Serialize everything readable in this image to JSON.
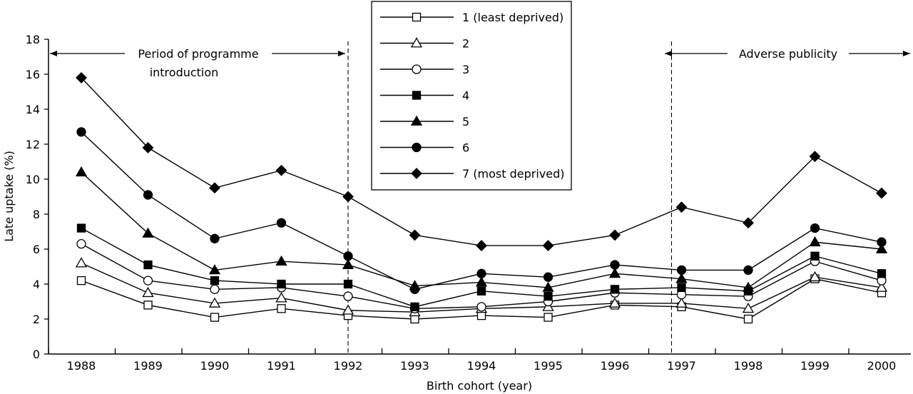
{
  "chart_data": {
    "type": "line",
    "title": "",
    "xlabel": "Birth cohort (year)",
    "ylabel": "Late uptake (%)",
    "ylim": [
      0,
      18
    ],
    "yticks": [
      0,
      2,
      4,
      6,
      8,
      10,
      12,
      14,
      16,
      18
    ],
    "categories": [
      "1988",
      "1989",
      "1990",
      "1991",
      "1992",
      "1993",
      "1994",
      "1995",
      "1996",
      "1997",
      "1998",
      "1999",
      "2000"
    ],
    "grid": false,
    "legend_position": "top-center",
    "series": [
      {
        "name": "1 (least deprived)",
        "marker": "square-open",
        "values": [
          4.2,
          2.8,
          2.1,
          2.6,
          2.2,
          2.0,
          2.2,
          2.1,
          2.8,
          2.7,
          2.0,
          4.3,
          3.5
        ]
      },
      {
        "name": "2",
        "marker": "triangle-open",
        "values": [
          5.2,
          3.5,
          2.9,
          3.2,
          2.5,
          2.4,
          2.6,
          2.7,
          2.9,
          2.9,
          2.6,
          4.4,
          3.8
        ]
      },
      {
        "name": "3",
        "marker": "circle-open",
        "values": [
          6.3,
          4.2,
          3.7,
          3.8,
          3.3,
          2.6,
          2.7,
          3.0,
          3.5,
          3.4,
          3.3,
          5.3,
          4.2
        ]
      },
      {
        "name": "4",
        "marker": "square-filled",
        "values": [
          7.2,
          5.1,
          4.2,
          4.0,
          4.0,
          2.7,
          3.6,
          3.3,
          3.7,
          3.8,
          3.6,
          5.6,
          4.6
        ]
      },
      {
        "name": "5",
        "marker": "triangle-filled",
        "values": [
          10.4,
          6.9,
          4.8,
          5.3,
          5.1,
          3.9,
          4.1,
          3.8,
          4.6,
          4.3,
          3.8,
          6.4,
          6.0
        ]
      },
      {
        "name": "6",
        "marker": "circle-filled",
        "values": [
          12.7,
          9.1,
          6.6,
          7.5,
          5.6,
          3.7,
          4.6,
          4.4,
          5.1,
          4.8,
          4.8,
          7.2,
          6.4
        ]
      },
      {
        "name": "7 (most deprived)",
        "marker": "diamond-filled",
        "values": [
          15.8,
          11.8,
          9.5,
          10.5,
          9.0,
          6.8,
          6.2,
          6.2,
          6.8,
          8.4,
          7.5,
          11.3,
          9.2
        ]
      }
    ],
    "annotations": [
      {
        "id": "period",
        "text_lines": [
          "Period of programme",
          "introduction"
        ],
        "from_x": "1988",
        "to_x": "1992"
      },
      {
        "id": "adverse",
        "text_lines": [
          "Adverse publicity"
        ],
        "from_x": "1996.85",
        "to_x": "2000"
      }
    ],
    "reference_lines": [
      {
        "x": "1992",
        "style": "dashed"
      },
      {
        "x": "1996.85",
        "style": "dashed"
      }
    ]
  }
}
